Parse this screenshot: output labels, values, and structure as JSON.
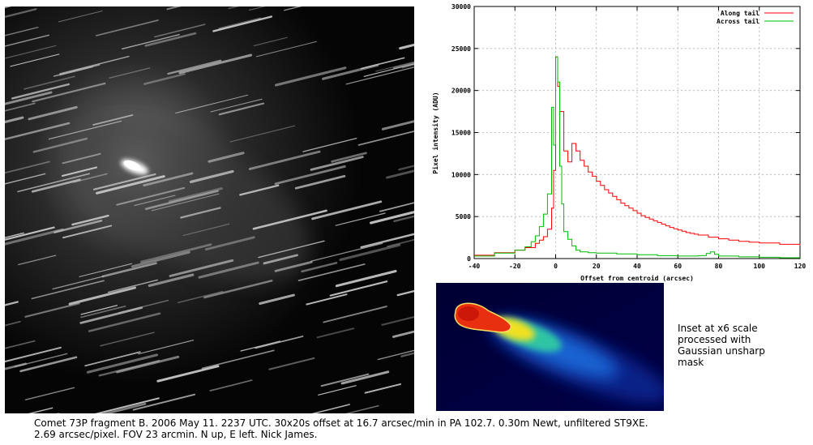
{
  "colors": {
    "along": "#ff0000",
    "across": "#00bb00",
    "grid": "#b0b0b0",
    "photo_bg": "#050505"
  },
  "photo": {
    "icon": "comet-photo-image"
  },
  "inset": {
    "icon": "comet-inset-image",
    "note": "Inset at x6 scale\nprocessed with\nGaussian unsharp\nmask"
  },
  "caption": {
    "line1": "Comet 73P fragment B. 2006 May 11. 2237 UTC. 30x20s offset at 16.7 arcsec/min in PA 102.7. 0.30m Newt, unfiltered ST9XE.",
    "line2": "2.69 arcsec/pixel. FOV 23 arcmin. N up, E left. Nick James."
  },
  "chart_data": {
    "type": "line",
    "title": "",
    "xlabel": "Offset from centroid (arcsec)",
    "ylabel": "Pixel intensity (ADU)",
    "xlim": [
      -40,
      120
    ],
    "ylim": [
      0,
      30000
    ],
    "xticks": [
      -40,
      -20,
      0,
      20,
      40,
      60,
      80,
      100,
      120
    ],
    "yticks": [
      0,
      5000,
      10000,
      15000,
      20000,
      25000,
      30000
    ],
    "grid": true,
    "legend_position": "top-right",
    "series": [
      {
        "name": "Along tail",
        "color": "#ff0000",
        "step": true,
        "x": [
          -40,
          -30,
          -20,
          -15,
          -10,
          -8,
          -6,
          -4,
          -2,
          -1,
          0,
          1,
          2,
          4,
          6,
          8,
          10,
          12,
          14,
          16,
          18,
          20,
          22,
          24,
          26,
          28,
          30,
          32,
          34,
          36,
          38,
          40,
          42,
          44,
          46,
          48,
          50,
          52,
          54,
          56,
          58,
          60,
          62,
          64,
          66,
          68,
          70,
          75,
          80,
          85,
          90,
          95,
          100,
          110,
          120
        ],
        "y": [
          400,
          700,
          1000,
          1300,
          1800,
          2200,
          2600,
          3500,
          6000,
          10500,
          24000,
          20500,
          17500,
          12800,
          11500,
          13700,
          12800,
          11700,
          11000,
          10300,
          9800,
          9200,
          8700,
          8200,
          7800,
          7400,
          7000,
          6600,
          6300,
          6000,
          5700,
          5400,
          5100,
          4900,
          4700,
          4500,
          4300,
          4100,
          3900,
          3700,
          3550,
          3400,
          3250,
          3100,
          3000,
          2900,
          2800,
          2550,
          2350,
          2200,
          2050,
          1950,
          1850,
          1700,
          1550
        ]
      },
      {
        "name": "Across tail",
        "color": "#00bb00",
        "step": true,
        "x": [
          -40,
          -30,
          -20,
          -15,
          -12,
          -10,
          -8,
          -6,
          -4,
          -2,
          -1,
          0,
          1,
          2,
          3,
          4,
          6,
          8,
          10,
          12,
          16,
          20,
          30,
          40,
          50,
          60,
          70,
          74,
          76,
          78,
          80,
          90,
          100,
          110,
          120
        ],
        "y": [
          300,
          650,
          1000,
          1400,
          2000,
          2700,
          3800,
          5300,
          7700,
          18000,
          13500,
          24000,
          21000,
          11000,
          6500,
          3200,
          2300,
          1500,
          1000,
          800,
          700,
          650,
          550,
          450,
          350,
          300,
          350,
          600,
          800,
          500,
          300,
          200,
          150,
          100,
          100
        ]
      }
    ]
  }
}
